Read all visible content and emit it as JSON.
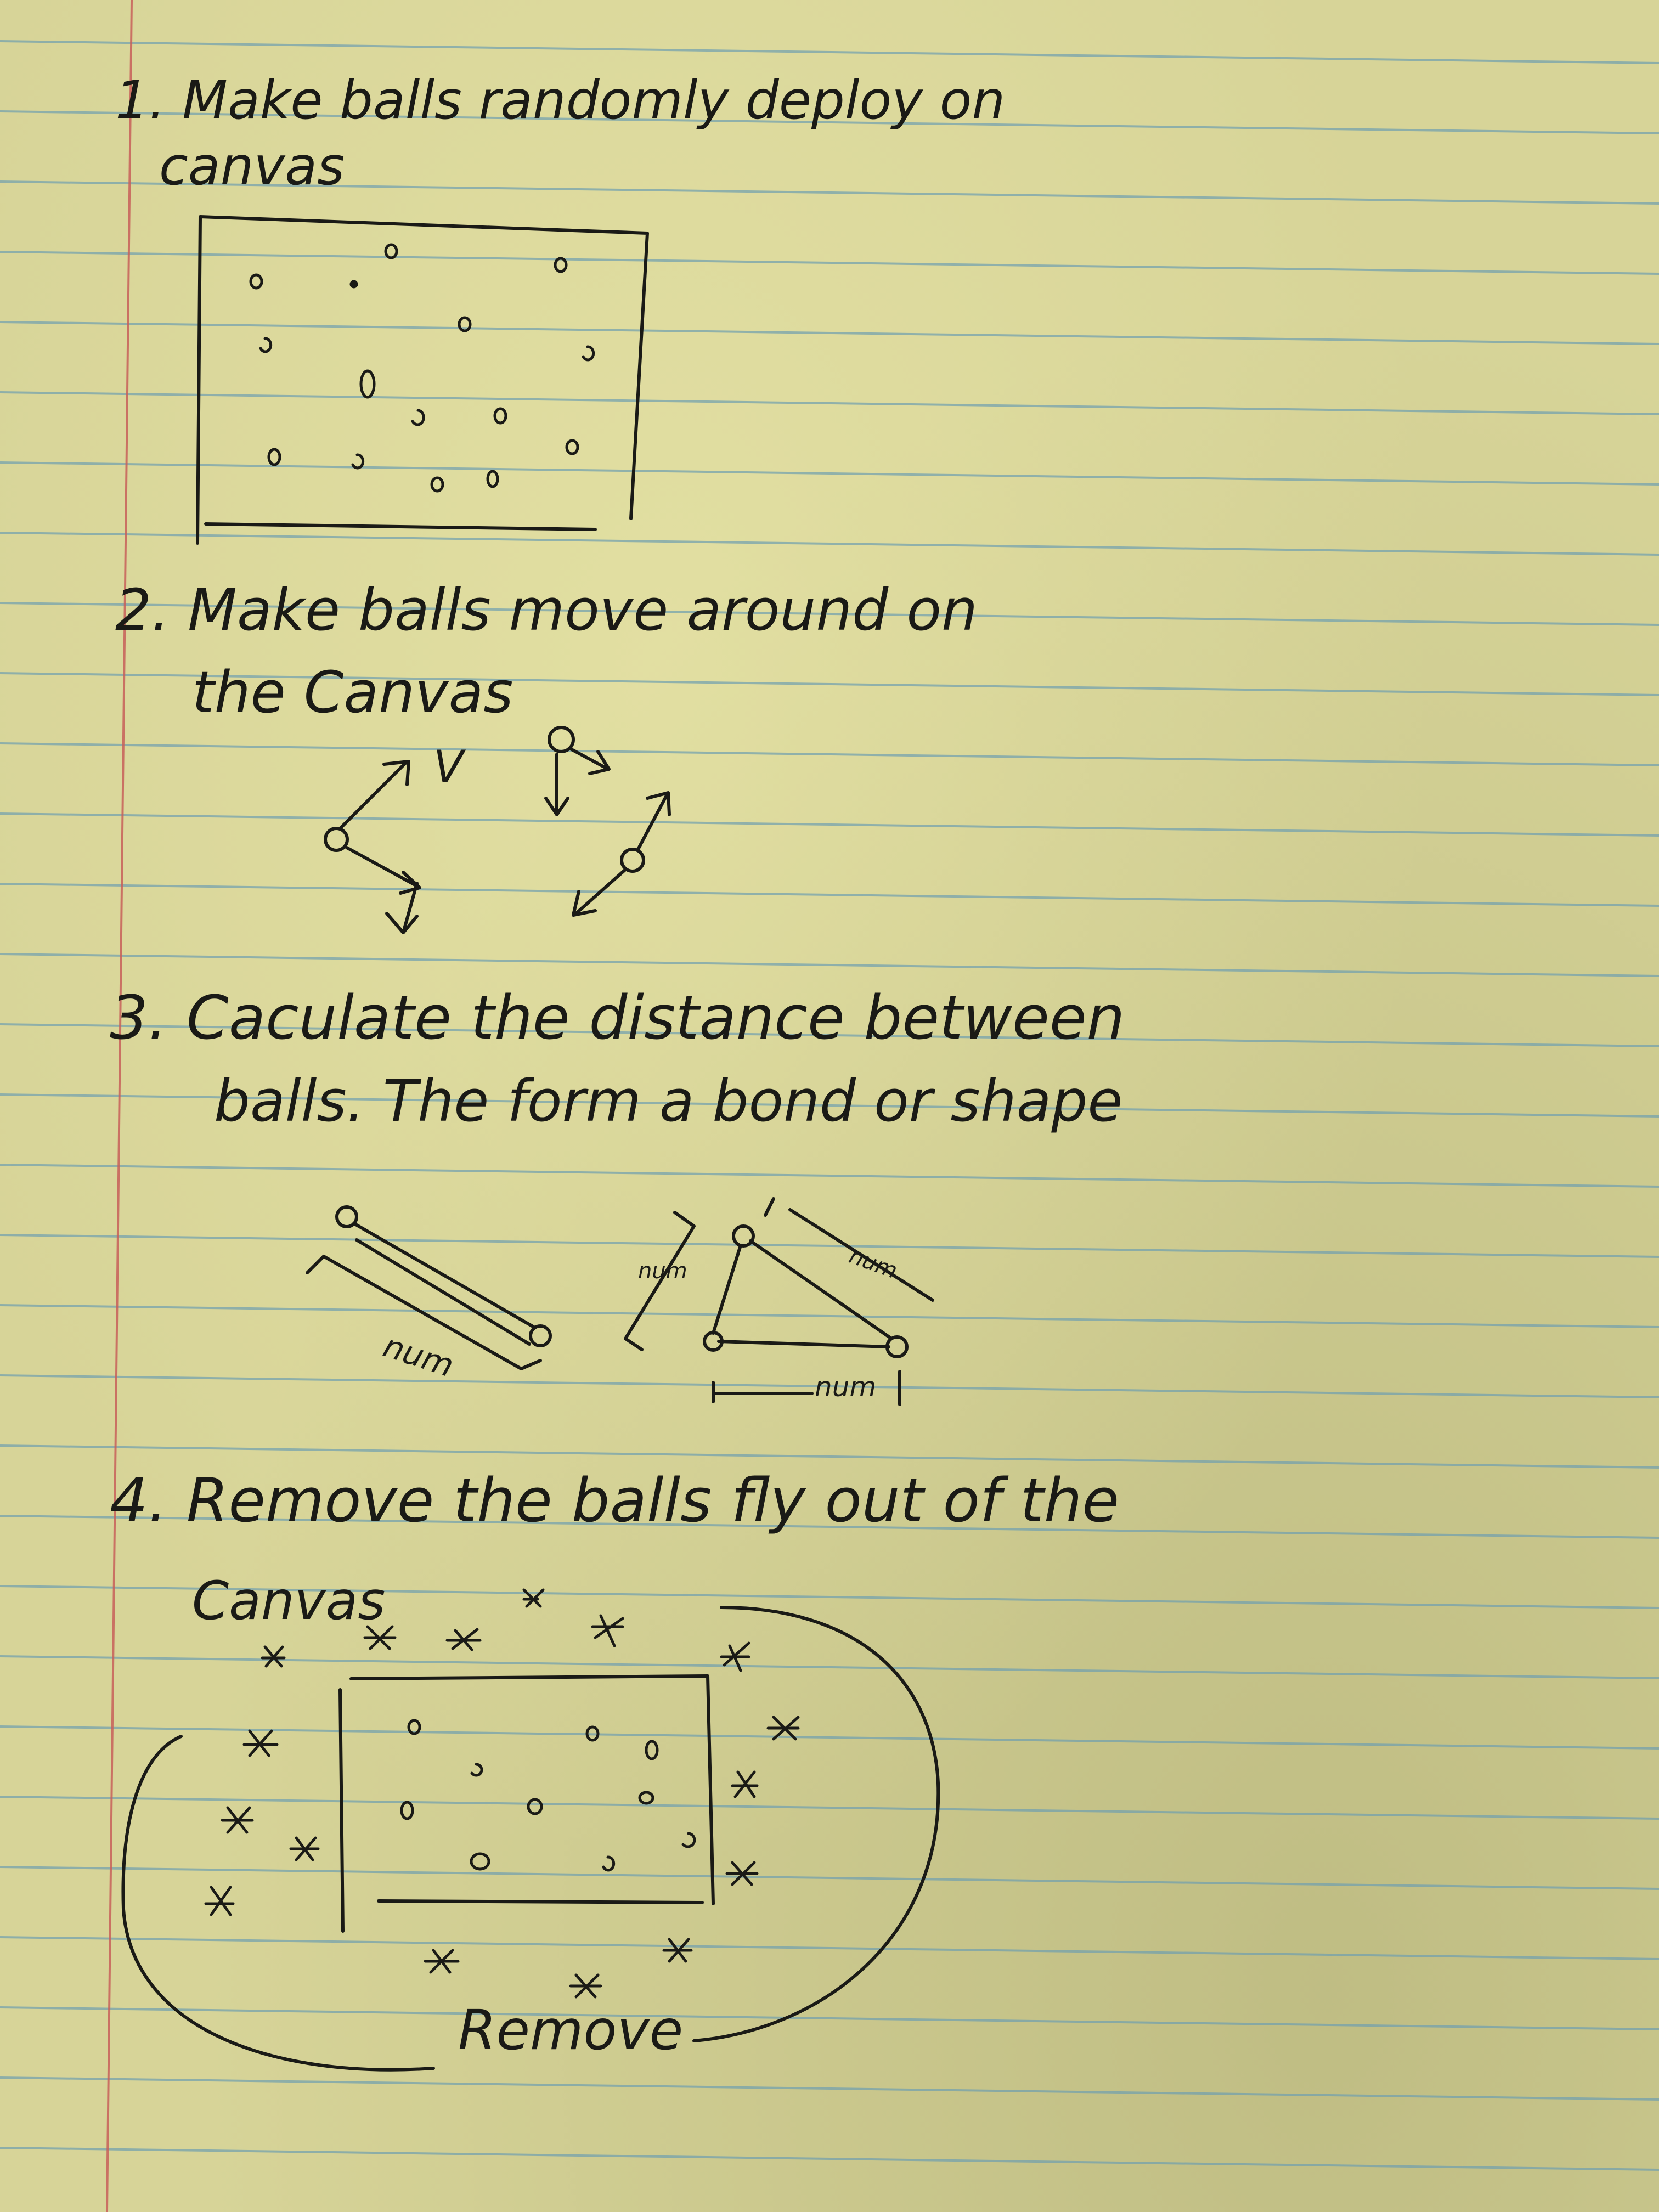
{
  "notes": {
    "step1": {
      "line1": "1. Make balls randomly deploy on",
      "line2": "canvas"
    },
    "step2": {
      "line1": "2. Make balls move around on",
      "line2": "the Canvas",
      "velocity_label": "V"
    },
    "step3": {
      "line1": "3. Caculate the distance between",
      "line2": "balls. The form a bond or shape",
      "distance_label_a": "num",
      "distance_label_b": "num",
      "distance_label_c": "num",
      "distance_label_d": "num"
    },
    "step4": {
      "line1": "4. Remove the balls fly out of the",
      "line2": "Canvas",
      "remove_label": "Remove"
    }
  },
  "colors": {
    "paper": "#d7d498",
    "rule_blue": "#6f9fb0",
    "margin_red": "#c8605a",
    "ink": "#1a1a16"
  }
}
